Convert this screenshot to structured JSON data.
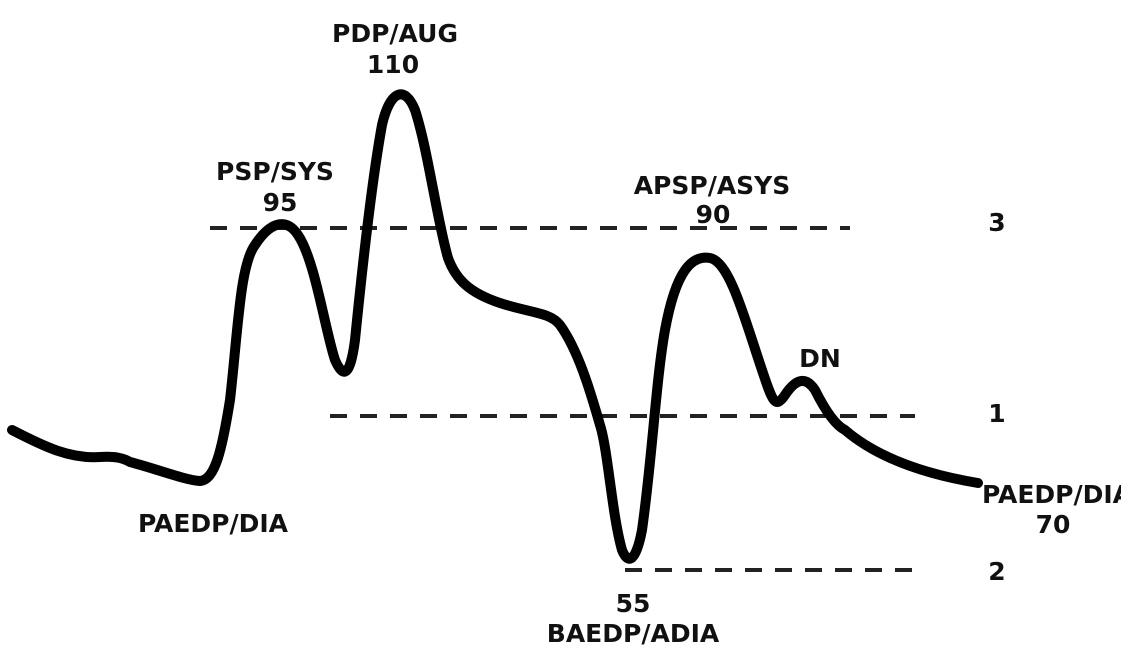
{
  "annotations": {
    "psp": {
      "name": "PSP/SYS",
      "value": "95"
    },
    "pdp": {
      "name": "PDP/AUG",
      "value": "110"
    },
    "apsp": {
      "name": "APSP/ASYS",
      "value": "90"
    },
    "dn": {
      "name": "DN"
    },
    "paedp_left": {
      "name": "PAEDP/DIA"
    },
    "paedp_right": {
      "name": "PAEDP/DIA",
      "value": "70"
    },
    "baedp": {
      "name": "BAEDP/ADIA",
      "value": "55"
    }
  },
  "reference_lines": [
    {
      "label": "3"
    },
    {
      "label": "1"
    },
    {
      "label": "2"
    }
  ],
  "colors": {
    "waveform": "#000000",
    "dashed": "#222222",
    "text": "#111111"
  }
}
